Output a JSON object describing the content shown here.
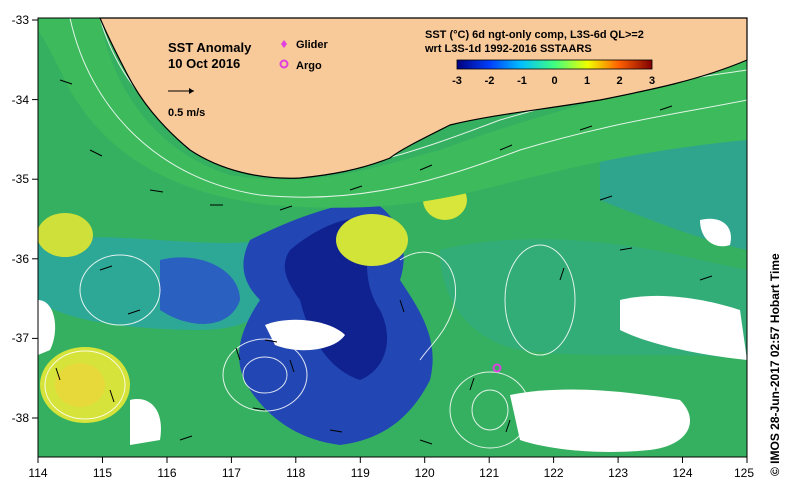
{
  "map": {
    "title": "SST Anomaly",
    "date": "10 Oct 2016",
    "scale_arrow_label": "0.5 m/s",
    "legend_glider": "Glider",
    "legend_argo": "Argo",
    "product_line1": "SST (°C) 6d ngt-only comp, L3S-6d QL>=2",
    "product_line2": "wrt L3S-1d 1992-2016 SSTAARS",
    "colorbar_ticks": [
      "-3",
      "-2",
      "-1",
      "0",
      "1",
      "2",
      "3"
    ],
    "lon_ticks": [
      "114",
      "115",
      "116",
      "117",
      "118",
      "119",
      "120",
      "121",
      "122",
      "123",
      "124",
      "125"
    ],
    "lat_ticks": [
      "-33",
      "-34",
      "-35",
      "-36",
      "-37",
      "-38"
    ],
    "credit": "© IMOS 28-Jun-2017 02:57 Hobart Time",
    "colors": {
      "land": "#f8c999",
      "ocean_green": "#3db85a",
      "ocean_teal": "#2aa29a",
      "cold_blue": "#1d3fa6",
      "deep_blue": "#0c1f8a",
      "warm_yellow": "#d8e536",
      "glider": "#e040e0",
      "argo": "#e040e0"
    }
  }
}
